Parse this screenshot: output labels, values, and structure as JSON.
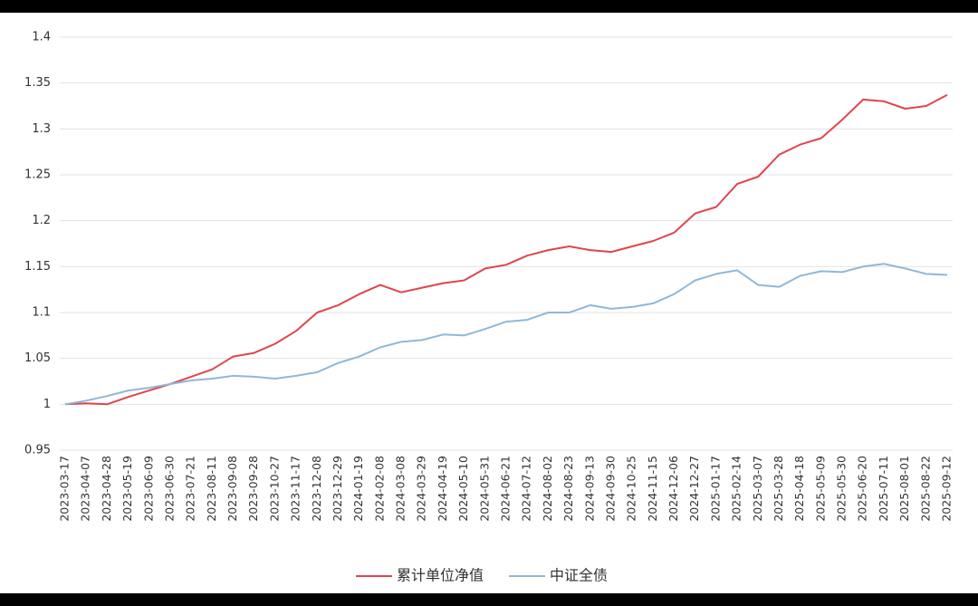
{
  "chart_data": {
    "type": "line",
    "categories": [
      "2023-03-17",
      "2023-04-07",
      "2023-04-28",
      "2023-05-19",
      "2023-06-09",
      "2023-06-30",
      "2023-07-21",
      "2023-08-11",
      "2023-09-08",
      "2023-09-28",
      "2023-10-27",
      "2023-11-17",
      "2023-12-08",
      "2023-12-29",
      "2024-01-19",
      "2024-02-08",
      "2024-03-08",
      "2024-03-29",
      "2024-04-19",
      "2024-05-10",
      "2024-05-31",
      "2024-06-21",
      "2024-07-12",
      "2024-08-02",
      "2024-08-23",
      "2024-09-13",
      "2024-09-30",
      "2024-10-25",
      "2024-11-15",
      "2024-12-06",
      "2024-12-27",
      "2025-01-17",
      "2025-02-14",
      "2025-03-07",
      "2025-03-28",
      "2025-04-18",
      "2025-05-09",
      "2025-05-30",
      "2025-06-20",
      "2025-07-11",
      "2025-08-01",
      "2025-08-22",
      "2025-09-12"
    ],
    "series": [
      {
        "name": "累计单位净值",
        "color": "#e0454c",
        "values": [
          1.0,
          1.001,
          1.0,
          1.008,
          1.015,
          1.022,
          1.03,
          1.038,
          1.052,
          1.056,
          1.066,
          1.08,
          1.1,
          1.108,
          1.12,
          1.13,
          1.122,
          1.127,
          1.132,
          1.135,
          1.148,
          1.152,
          1.162,
          1.168,
          1.172,
          1.168,
          1.166,
          1.172,
          1.178,
          1.187,
          1.208,
          1.215,
          1.24,
          1.248,
          1.272,
          1.283,
          1.29,
          1.31,
          1.332,
          1.33,
          1.322,
          1.325,
          1.337
        ]
      },
      {
        "name": "中证全债",
        "color": "#8fb8d8",
        "values": [
          1.0,
          1.004,
          1.009,
          1.015,
          1.018,
          1.022,
          1.026,
          1.028,
          1.031,
          1.03,
          1.028,
          1.031,
          1.035,
          1.045,
          1.052,
          1.062,
          1.068,
          1.07,
          1.076,
          1.075,
          1.082,
          1.09,
          1.092,
          1.1,
          1.1,
          1.108,
          1.104,
          1.106,
          1.11,
          1.12,
          1.135,
          1.142,
          1.146,
          1.13,
          1.128,
          1.14,
          1.145,
          1.144,
          1.15,
          1.153,
          1.148,
          1.142,
          1.141
        ]
      }
    ],
    "ylim": [
      0.95,
      1.4
    ],
    "yticks": [
      0.95,
      1,
      1.05,
      1.1,
      1.15,
      1.2,
      1.25,
      1.3,
      1.35,
      1.4
    ],
    "grid": true,
    "legend": "bottom"
  }
}
